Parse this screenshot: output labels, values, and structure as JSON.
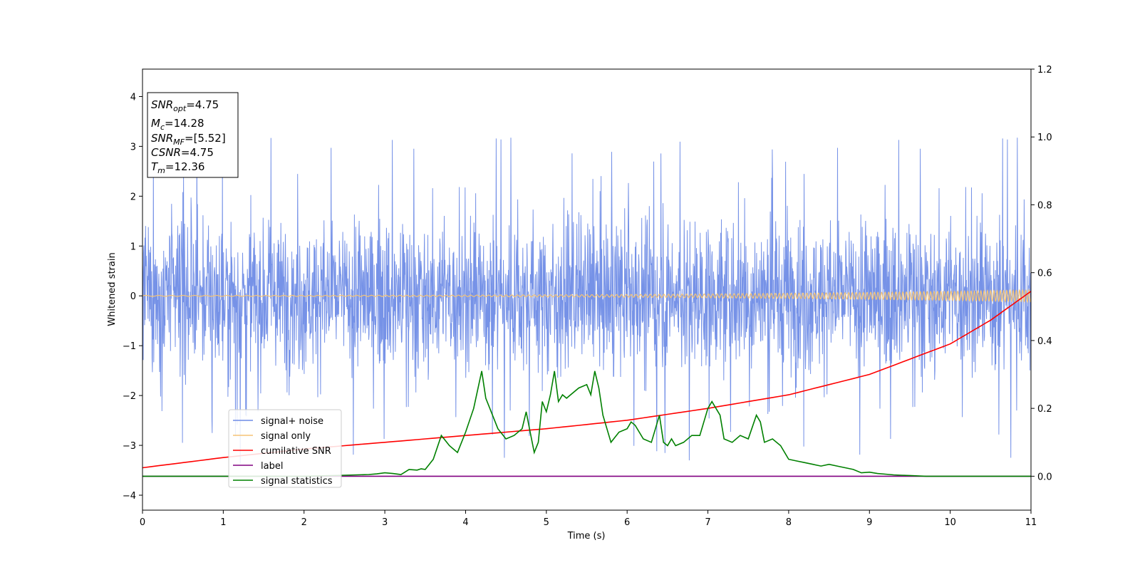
{
  "chart_data": {
    "type": "line",
    "title": "",
    "xlabel": "Time (s)",
    "ylabel": "Whitened strain",
    "xlim": [
      0,
      11
    ],
    "ylim": [
      -4.3,
      4.55
    ],
    "y2lim": [
      -0.1,
      1.2
    ],
    "grid": false,
    "legend_placement": "lower-left",
    "x_ticks": [
      "0",
      "1",
      "2",
      "3",
      "4",
      "5",
      "6",
      "7",
      "8",
      "9",
      "10",
      "11"
    ],
    "y_ticks": [
      "−4",
      "−3",
      "−2",
      "−1",
      "0",
      "1",
      "2",
      "3",
      "4"
    ],
    "y2_ticks": [
      "0.0",
      "0.2",
      "0.4",
      "0.6",
      "0.8",
      "1.0",
      "1.2"
    ],
    "info_box": {
      "snr_opt": {
        "sym": "SNR",
        "sub": "opt",
        "value": "=4.75"
      },
      "mc": {
        "sym": "M",
        "sub": "c",
        "value": "=14.28"
      },
      "snr_mf": {
        "sym": "SNR",
        "sub": "MF",
        "value": "=[5.52]"
      },
      "csnr": {
        "sym": "CSNR",
        "value": "=4.75"
      },
      "tm": {
        "sym": "T",
        "sub": "m",
        "value": "=12.36"
      }
    },
    "series": [
      {
        "name": "signal+ noise",
        "color": "#6f8ce6",
        "axis": "left",
        "kind": "noise",
        "band": [
          -1.9,
          2.1
        ],
        "sigma": 0.75
      },
      {
        "name": "signal only",
        "color": "#f5c476",
        "axis": "left",
        "kind": "chirp",
        "amplitude_start": 0.01,
        "amplitude_end": 0.12
      },
      {
        "name": "cumilative SNR",
        "color": "#ff0000",
        "axis": "right",
        "x": [
          0,
          1,
          2,
          3,
          4,
          5,
          6,
          7,
          8,
          9,
          10,
          10.5,
          11
        ],
        "y": [
          0.025,
          0.055,
          0.08,
          0.1,
          0.12,
          0.14,
          0.165,
          0.2,
          0.24,
          0.3,
          0.39,
          0.46,
          0.545
        ]
      },
      {
        "name": "label",
        "color": "#800080",
        "axis": "right",
        "x": [
          0,
          11
        ],
        "y": [
          0.0,
          0.0
        ]
      },
      {
        "name": "signal statistics",
        "color": "#008000",
        "axis": "right",
        "x": [
          0,
          1,
          2,
          2.5,
          2.8,
          2.9,
          3.0,
          3.1,
          3.2,
          3.3,
          3.4,
          3.45,
          3.5,
          3.6,
          3.7,
          3.8,
          3.9,
          4.0,
          4.1,
          4.2,
          4.25,
          4.3,
          4.4,
          4.5,
          4.6,
          4.7,
          4.75,
          4.8,
          4.85,
          4.9,
          4.95,
          5.0,
          5.05,
          5.1,
          5.15,
          5.2,
          5.25,
          5.3,
          5.4,
          5.5,
          5.55,
          5.6,
          5.65,
          5.7,
          5.8,
          5.9,
          6.0,
          6.05,
          6.1,
          6.2,
          6.3,
          6.35,
          6.4,
          6.45,
          6.5,
          6.55,
          6.6,
          6.7,
          6.8,
          6.9,
          7.0,
          7.05,
          7.1,
          7.15,
          7.2,
          7.3,
          7.4,
          7.5,
          7.6,
          7.65,
          7.7,
          7.8,
          7.9,
          8.0,
          8.1,
          8.2,
          8.3,
          8.4,
          8.5,
          8.6,
          8.7,
          8.8,
          8.9,
          9.0,
          9.1,
          9.2,
          9.3,
          9.4,
          9.5,
          9.6,
          9.7,
          9.8,
          10,
          11
        ],
        "y": [
          0.0,
          0.0,
          0.0,
          0.003,
          0.005,
          0.007,
          0.01,
          0.008,
          0.005,
          0.02,
          0.018,
          0.022,
          0.02,
          0.05,
          0.12,
          0.09,
          0.07,
          0.13,
          0.2,
          0.31,
          0.23,
          0.2,
          0.14,
          0.11,
          0.12,
          0.14,
          0.19,
          0.13,
          0.07,
          0.1,
          0.22,
          0.19,
          0.24,
          0.31,
          0.22,
          0.24,
          0.23,
          0.24,
          0.26,
          0.27,
          0.24,
          0.31,
          0.26,
          0.18,
          0.1,
          0.13,
          0.14,
          0.16,
          0.15,
          0.11,
          0.1,
          0.14,
          0.18,
          0.1,
          0.09,
          0.11,
          0.09,
          0.1,
          0.12,
          0.12,
          0.2,
          0.22,
          0.2,
          0.18,
          0.11,
          0.1,
          0.12,
          0.11,
          0.18,
          0.16,
          0.1,
          0.11,
          0.09,
          0.05,
          0.045,
          0.04,
          0.035,
          0.03,
          0.035,
          0.03,
          0.025,
          0.02,
          0.01,
          0.012,
          0.008,
          0.006,
          0.004,
          0.003,
          0.002,
          0.001,
          0.0,
          0.0,
          0.0,
          0.0
        ]
      }
    ]
  }
}
